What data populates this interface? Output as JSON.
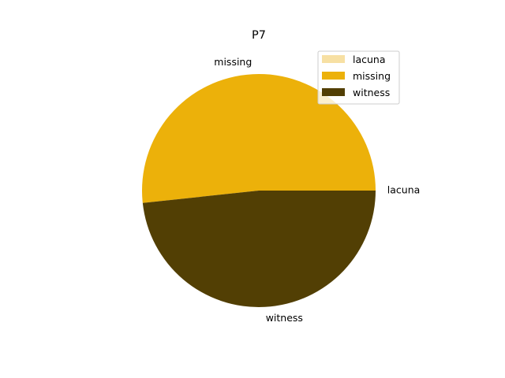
{
  "chart_data": {
    "type": "pie",
    "title": "P7",
    "slices": [
      {
        "label": "lacuna",
        "value": 0.0,
        "color": "#f7e0a3"
      },
      {
        "label": "missing",
        "value": 51.7,
        "color": "#ecb10a"
      },
      {
        "label": "witness",
        "value": 48.3,
        "color": "#523f04"
      }
    ],
    "start_angle_deg": 0,
    "direction": "counterclockwise",
    "legend": {
      "position": "top-right",
      "entries": [
        "lacuna",
        "missing",
        "witness"
      ]
    }
  }
}
